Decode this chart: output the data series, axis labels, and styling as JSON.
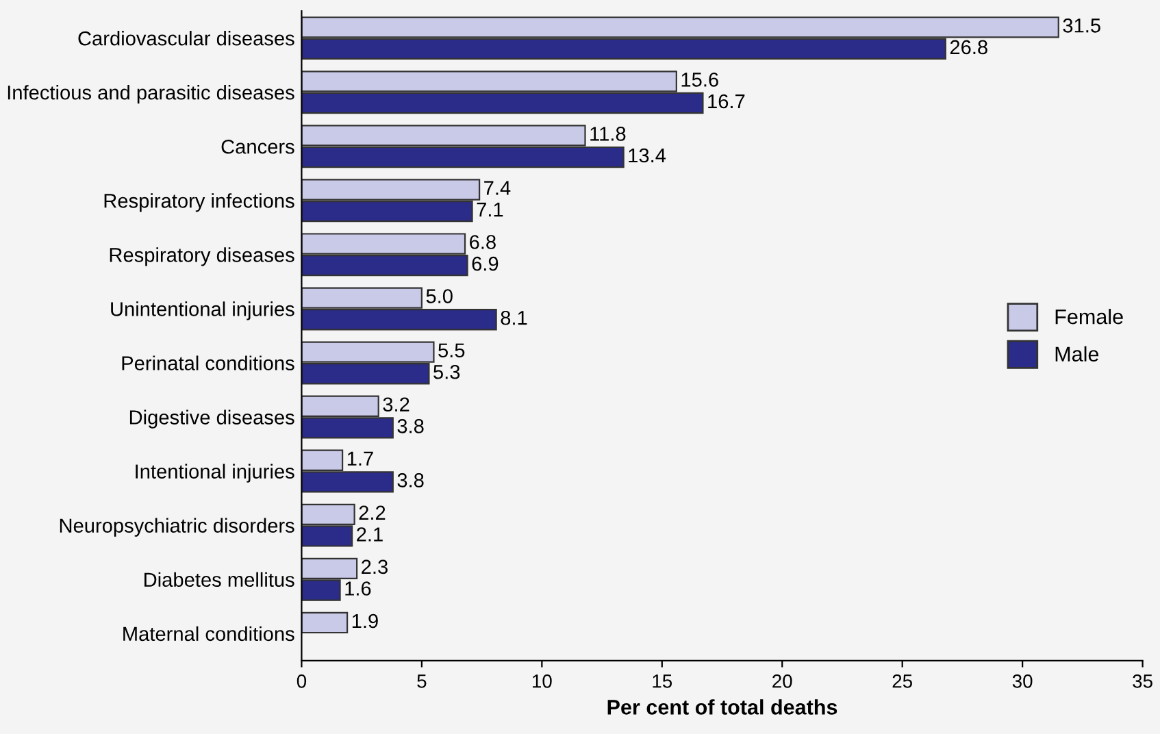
{
  "chart_data": {
    "type": "bar",
    "orientation": "horizontal",
    "xlabel": "Per cent of total deaths",
    "categories": [
      "Cardiovascular diseases",
      "Infectious and parasitic diseases",
      "Cancers",
      "Respiratory infections",
      "Respiratory diseases",
      "Unintentional injuries",
      "Perinatal conditions",
      "Digestive diseases",
      "Intentional injuries",
      "Neuropsychiatric disorders",
      "Diabetes mellitus",
      "Maternal conditions"
    ],
    "series": [
      {
        "name": "Female",
        "color": "#c9c9e8",
        "values": [
          31.5,
          15.6,
          11.8,
          7.4,
          6.8,
          5.0,
          5.5,
          3.2,
          1.7,
          2.2,
          2.3,
          1.9
        ],
        "value_labels": [
          "31.5",
          "15.6",
          "11.8",
          "7.4",
          "6.8",
          "5.0",
          "5.5",
          "3.2",
          "1.7",
          "2.2",
          "2.3",
          "1.9"
        ]
      },
      {
        "name": "Male",
        "color": "#2b2b8a",
        "values": [
          26.8,
          16.7,
          13.4,
          7.1,
          6.9,
          8.1,
          5.3,
          3.8,
          3.8,
          2.1,
          1.6,
          null
        ],
        "value_labels": [
          "26.8",
          "16.7",
          "13.4",
          "7.1",
          "6.9",
          "8.1",
          "5.3",
          "3.8",
          "3.8",
          "2.1",
          "1.6",
          null
        ]
      }
    ],
    "xlim": [
      0,
      35
    ],
    "xticks": [
      0,
      5,
      10,
      15,
      20,
      25,
      30,
      35
    ],
    "grid": false,
    "legend": "right"
  }
}
